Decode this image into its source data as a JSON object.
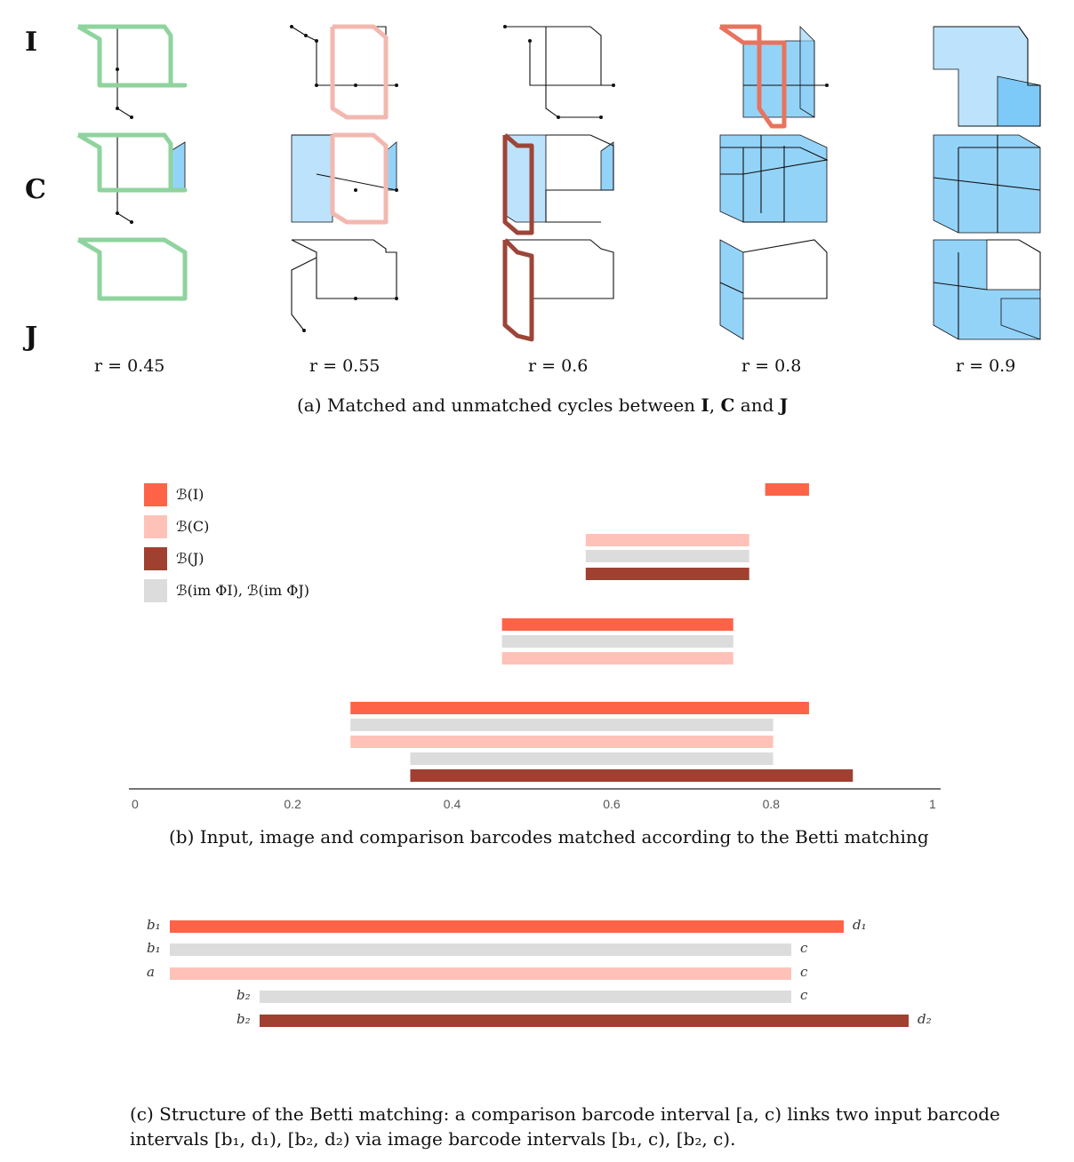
{
  "panel_a": {
    "row_labels": [
      "I",
      "C",
      "J"
    ],
    "r_values": [
      "r = 0.45",
      "r = 0.55",
      "r = 0.6",
      "r = 0.8",
      "r = 0.9"
    ],
    "caption_prefix": "(a) Matched and unmatched cycles between ",
    "caption_I": "I",
    "caption_sep": ", ",
    "caption_C": "C",
    "caption_and": " and ",
    "caption_J": "J",
    "colors": {
      "green": "#8fd39e",
      "pink": "#f2b8b0",
      "red": "#e8735e",
      "darkred": "#9c4538",
      "blue": "#5bbcf5"
    }
  },
  "panel_b": {
    "caption": "(b) Input, image and comparison barcodes matched according to the Betti matching",
    "legend": [
      {
        "label": "ℬ(I)",
        "color": "#ff6347"
      },
      {
        "label": "ℬ(C)",
        "color": "#ffc2b8"
      },
      {
        "label": "ℬ(J)",
        "color": "#a04030"
      },
      {
        "label": "ℬ(im ΦI), ℬ(im ΦJ)",
        "color": "#dcdcdc"
      }
    ],
    "chart_data": {
      "type": "bar",
      "orientation": "horizontal",
      "xlim": [
        0,
        1
      ],
      "ticks": [
        "0",
        "0.2",
        "0.4",
        "0.6",
        "0.8",
        "1"
      ],
      "bars": [
        {
          "series": "B(I)",
          "start": 0.79,
          "end": 0.845,
          "color": "#ff6347"
        },
        {
          "series": "B(C)",
          "start": 0.565,
          "end": 0.77,
          "color": "#ffc2b8"
        },
        {
          "series": "B(im)",
          "start": 0.565,
          "end": 0.77,
          "color": "#dcdcdc"
        },
        {
          "series": "B(J)",
          "start": 0.565,
          "end": 0.77,
          "color": "#a04030"
        },
        {
          "series": "B(I)",
          "start": 0.46,
          "end": 0.75,
          "color": "#ff6347"
        },
        {
          "series": "B(im)",
          "start": 0.46,
          "end": 0.75,
          "color": "#dcdcdc"
        },
        {
          "series": "B(C)",
          "start": 0.46,
          "end": 0.75,
          "color": "#ffc2b8"
        },
        {
          "series": "B(I)",
          "start": 0.27,
          "end": 0.845,
          "color": "#ff6347"
        },
        {
          "series": "B(im)",
          "start": 0.27,
          "end": 0.8,
          "color": "#dcdcdc"
        },
        {
          "series": "B(C)",
          "start": 0.27,
          "end": 0.8,
          "color": "#ffc2b8"
        },
        {
          "series": "B(im)",
          "start": 0.345,
          "end": 0.8,
          "color": "#dcdcdc"
        },
        {
          "series": "B(J)",
          "start": 0.345,
          "end": 0.9,
          "color": "#a04030"
        }
      ]
    }
  },
  "panel_c": {
    "caption_line1": "(c) Structure of the Betti matching: a comparison barcode interval [a, c) links two input barcode",
    "caption_line2": "intervals [b₁, d₁), [b₂, d₂) via image barcode intervals [b₁, c), [b₂, c).",
    "bars": [
      {
        "left": "b₁",
        "right": "d₁",
        "color": "#ff6347"
      },
      {
        "left": "b₁",
        "right": "c",
        "color": "#dcdcdc"
      },
      {
        "left": "a",
        "right": "c",
        "color": "#ffc2b8"
      },
      {
        "left": "b₂",
        "right": "c",
        "color": "#dcdcdc"
      },
      {
        "left": "b₂",
        "right": "d₂",
        "color": "#a04030"
      }
    ]
  }
}
